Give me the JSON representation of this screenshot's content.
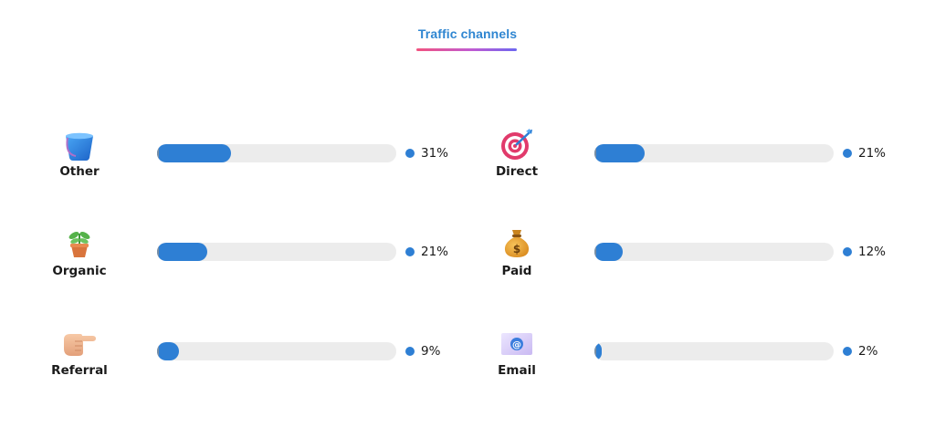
{
  "header": {
    "title": "Traffic channels",
    "underline_colors": [
      "#f2537f",
      "#c05bd2",
      "#6d67f0"
    ]
  },
  "accent_color": "#2e7fd4",
  "channels": [
    {
      "label": "Other",
      "percent_text": "31%",
      "percent": 31,
      "icon": "bucket-icon"
    },
    {
      "label": "Direct",
      "percent_text": "21%",
      "percent": 21,
      "icon": "target-icon"
    },
    {
      "label": "Organic",
      "percent_text": "21%",
      "percent": 21,
      "icon": "potted-plant-icon"
    },
    {
      "label": "Paid",
      "percent_text": "12%",
      "percent": 12,
      "icon": "money-bag-icon"
    },
    {
      "label": "Referral",
      "percent_text": "9%",
      "percent": 9,
      "icon": "pointing-hand-icon"
    },
    {
      "label": "Email",
      "percent_text": "2%",
      "percent": 2,
      "icon": "email-icon"
    }
  ]
}
